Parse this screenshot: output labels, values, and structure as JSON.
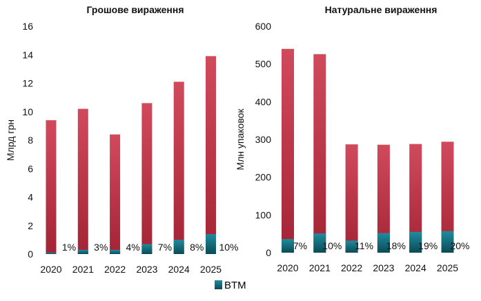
{
  "colors": {
    "total_top": "#d04a5c",
    "total_bottom": "#a32436",
    "btm_top": "#1f8c9e",
    "btm_bottom": "#0b4a56",
    "text": "#111111"
  },
  "legend": {
    "label": "BTM"
  },
  "chart_data": [
    {
      "type": "bar",
      "title": "Грошове вираження",
      "ylabel": "Млрд грн",
      "xlabel": "",
      "ylim": [
        0,
        16
      ],
      "yticks": [
        "0",
        "2",
        "4",
        "6",
        "8",
        "10",
        "12",
        "14",
        "16"
      ],
      "categories": [
        "2020",
        "2021",
        "2022",
        "2023",
        "2024",
        "2025"
      ],
      "series": [
        {
          "name": "BTM",
          "values": [
            0.1,
            0.3,
            0.3,
            0.7,
            1.0,
            1.4
          ]
        },
        {
          "values": [
            9.4,
            10.2,
            8.4,
            10.6,
            12.1,
            13.9
          ]
        }
      ],
      "labels": [
        "1%",
        "3%",
        "4%",
        "7%",
        "8%",
        "10%"
      ]
    },
    {
      "type": "bar",
      "title": "Натуральне вираження",
      "ylabel": "Млн упаковок",
      "xlabel": "",
      "ylim": [
        0,
        600
      ],
      "yticks": [
        "0",
        "100",
        "200",
        "300",
        "400",
        "500",
        "600"
      ],
      "categories": [
        "2020",
        "2021",
        "2022",
        "2023",
        "2024",
        "2025"
      ],
      "series": [
        {
          "name": "BTM",
          "values": [
            36,
            51,
            32,
            52,
            55,
            57
          ]
        },
        {
          "values": [
            540,
            526,
            287,
            286,
            288,
            294
          ]
        }
      ],
      "labels": [
        "7%",
        "10%",
        "11%",
        "18%",
        "19%",
        "20%"
      ]
    }
  ]
}
